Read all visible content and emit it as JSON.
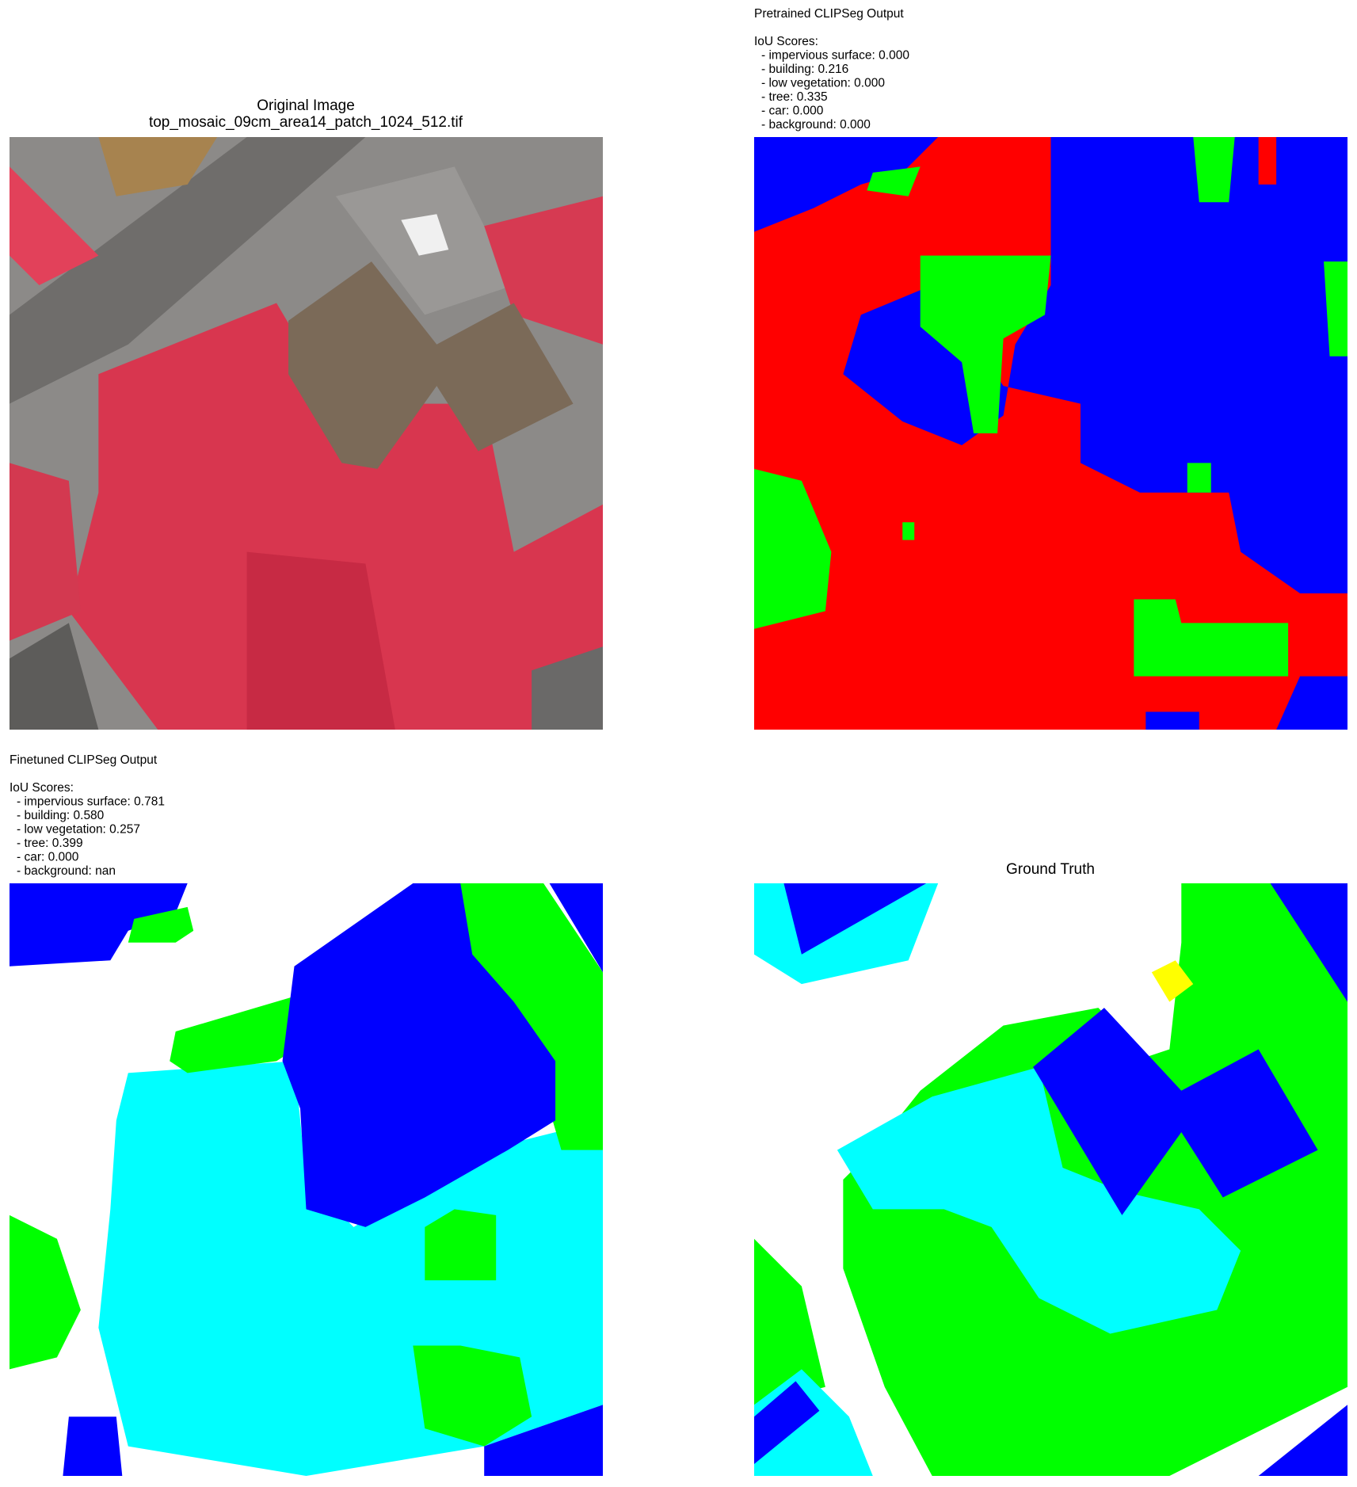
{
  "panels": [
    {
      "title": "Original Image",
      "subtitle": "top_mosaic_09cm_area14_patch_1024_512.tif"
    },
    {
      "title": "Pretrained CLIPSeg Output",
      "scores_heading": "IoU Scores:",
      "scores": [
        "- impervious surface: 0.000",
        "- building: 0.216",
        "- low vegetation: 0.000",
        "- tree: 0.335",
        "- car: 0.000",
        "- background: 0.000"
      ]
    },
    {
      "title": "Finetuned CLIPSeg Output",
      "scores_heading": "IoU Scores:",
      "scores": [
        "- impervious surface: 0.781",
        "- building: 0.580",
        "- low vegetation: 0.257",
        "- tree: 0.399",
        "- car: 0.000",
        "- background: nan"
      ]
    },
    {
      "title": "Ground Truth"
    }
  ]
}
